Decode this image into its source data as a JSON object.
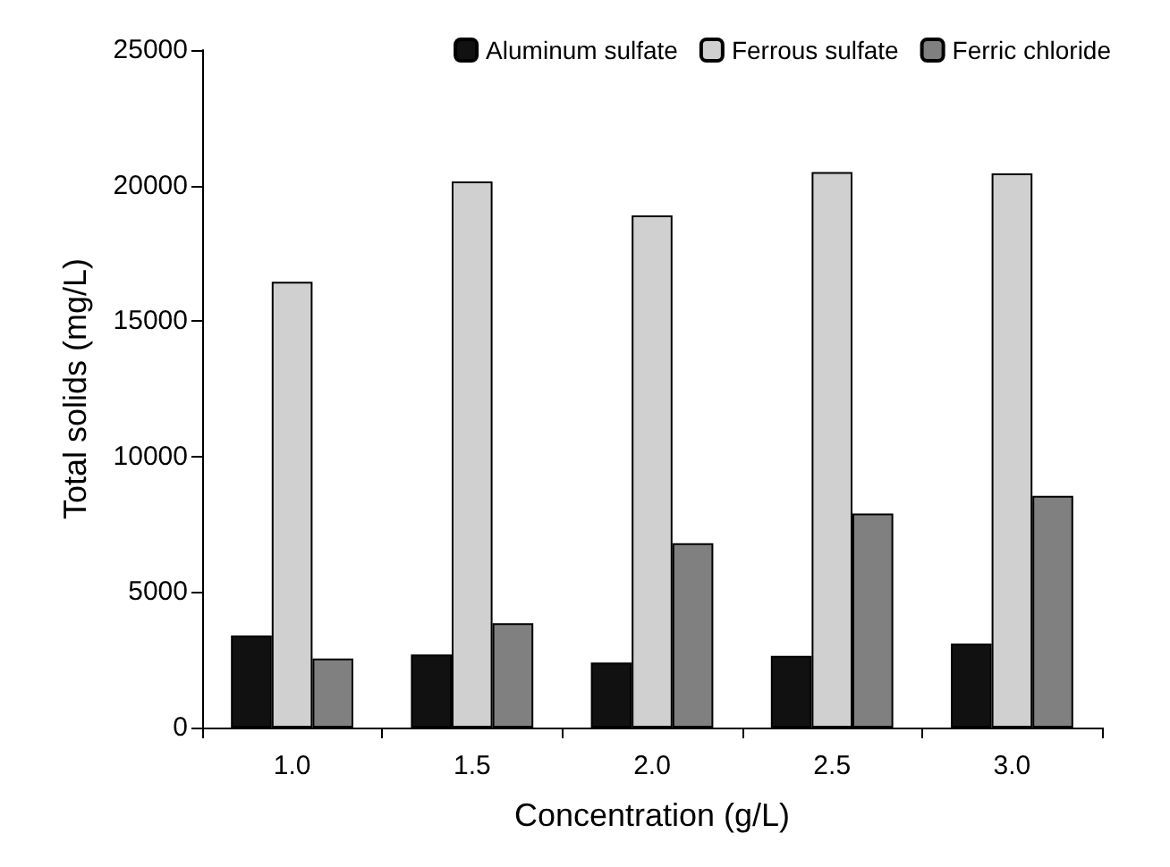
{
  "chart_data": {
    "type": "bar",
    "xlabel": "Concentration (g/L)",
    "ylabel": "Total solids (mg/L)",
    "categories": [
      "1.0",
      "1.5",
      "2.0",
      "2.5",
      "3.0"
    ],
    "series": [
      {
        "name": "Aluminum sulfate",
        "color": "#111111",
        "values": [
          3400,
          2700,
          2400,
          2650,
          3100
        ]
      },
      {
        "name": "Ferrous sulfate",
        "color": "#d0d0d0",
        "values": [
          16450,
          20150,
          18900,
          20500,
          20450
        ]
      },
      {
        "name": "Ferric chloride",
        "color": "#808080",
        "values": [
          2550,
          3850,
          6800,
          7900,
          8550
        ]
      }
    ],
    "ylim": [
      0,
      25000
    ],
    "yticks": [
      0,
      5000,
      10000,
      15000,
      20000,
      25000
    ],
    "grid": false,
    "legend": "top right"
  }
}
